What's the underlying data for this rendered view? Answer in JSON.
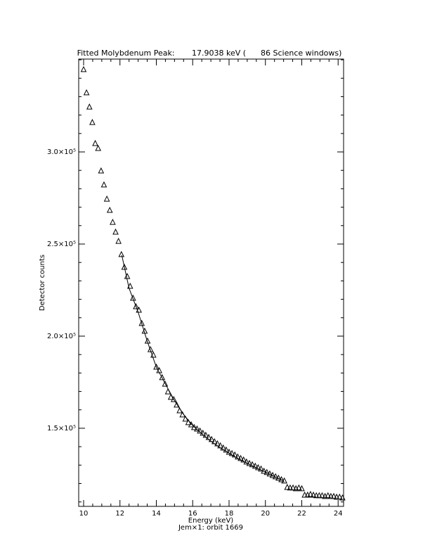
{
  "chart_data": {
    "type": "scatter",
    "title": "Fitted Molybdenum Peak:       17.9038 keV (      86 Science windows)",
    "xlabel": "Energy (keV)",
    "ylabel": "Detector counts",
    "subtitle": "Jem×1: orbit 1669",
    "xlim": [
      9.73,
      24.3
    ],
    "ylim": [
      107600,
      350400
    ],
    "xticks": [
      10,
      12,
      14,
      16,
      18,
      20,
      22,
      24
    ],
    "xticks_minor": [
      10.5,
      11,
      11.5,
      12.5,
      13,
      13.5,
      14.5,
      15,
      15.5,
      16.5,
      17,
      17.5,
      18.5,
      19,
      19.5,
      20.5,
      21,
      21.5,
      22.5,
      23,
      23.5
    ],
    "yticks": [
      {
        "value": 150000,
        "label": "1.5×10⁵"
      },
      {
        "value": 200000,
        "label": "2.0×10⁵"
      },
      {
        "value": 250000,
        "label": "2.5×10⁵"
      },
      {
        "value": 300000,
        "label": "3.0×10⁵"
      }
    ],
    "yticks_minor": [
      110000,
      120000,
      130000,
      140000,
      160000,
      170000,
      180000,
      190000,
      210000,
      220000,
      230000,
      240000,
      260000,
      270000,
      280000,
      290000,
      310000,
      320000,
      330000,
      340000,
      350000
    ],
    "color": "#000000",
    "points": {
      "x": [
        10.0,
        10.16,
        10.32,
        10.48,
        10.64,
        10.8,
        10.96,
        11.12,
        11.28,
        11.44,
        11.6,
        11.76,
        11.92,
        12.08,
        12.24,
        12.4,
        12.56,
        12.72,
        12.88,
        13.04,
        13.2,
        13.36,
        13.52,
        13.68,
        13.84,
        14.0,
        14.16,
        14.32,
        14.48,
        14.64,
        14.8,
        14.96,
        15.12,
        15.28,
        15.44,
        15.6,
        15.76,
        15.92,
        16.08,
        16.24,
        16.4,
        16.56,
        16.72,
        16.88,
        17.04,
        17.2,
        17.36,
        17.52,
        17.68,
        17.84,
        18.0,
        18.16,
        18.32,
        18.48,
        18.64,
        18.8,
        18.96,
        19.12,
        19.28,
        19.44,
        19.6,
        19.76,
        19.92,
        20.08,
        20.24,
        20.4,
        20.56,
        20.72,
        20.88,
        21.04,
        21.2,
        21.36,
        21.52,
        21.68,
        21.84,
        22.0,
        22.16,
        22.32,
        22.48,
        22.64,
        22.8,
        22.96,
        23.12,
        23.28,
        23.44,
        23.6,
        23.76,
        23.92,
        24.08,
        24.24
      ],
      "values": [
        344700,
        332100,
        324400,
        316000,
        304600,
        301900,
        289700,
        282100,
        274400,
        268300,
        261800,
        256500,
        251500,
        244300,
        237400,
        232400,
        227100,
        220600,
        216000,
        214100,
        206900,
        202700,
        197300,
        192700,
        189700,
        183200,
        181300,
        177500,
        174000,
        169800,
        166800,
        165600,
        162600,
        159500,
        157300,
        155000,
        153100,
        151900,
        150400,
        149600,
        148500,
        147300,
        146200,
        145000,
        143900,
        142700,
        141600,
        140500,
        139300,
        138200,
        137000,
        136300,
        135500,
        134400,
        133600,
        132800,
        131700,
        130900,
        130200,
        129400,
        128600,
        127900,
        126700,
        126000,
        125200,
        124400,
        123700,
        122900,
        122100,
        121400,
        117900,
        117600,
        117600,
        117200,
        117600,
        117200,
        113700,
        113700,
        114100,
        113700,
        113400,
        113400,
        113400,
        113000,
        113400,
        113000,
        113000,
        112600,
        112600,
        112200
      ]
    },
    "fit": {
      "x": [
        12.1,
        12.5,
        13,
        13.5,
        14,
        14.5,
        15,
        15.5,
        16,
        16.5,
        17,
        17.5,
        18,
        18.5,
        19,
        19.5,
        20,
        20.5,
        21
      ],
      "values": [
        244000,
        226000,
        213000,
        197300,
        183200,
        174000,
        165000,
        157500,
        151500,
        147000,
        143000,
        139500,
        136500,
        133500,
        131000,
        128500,
        126200,
        123800,
        121400
      ]
    }
  }
}
